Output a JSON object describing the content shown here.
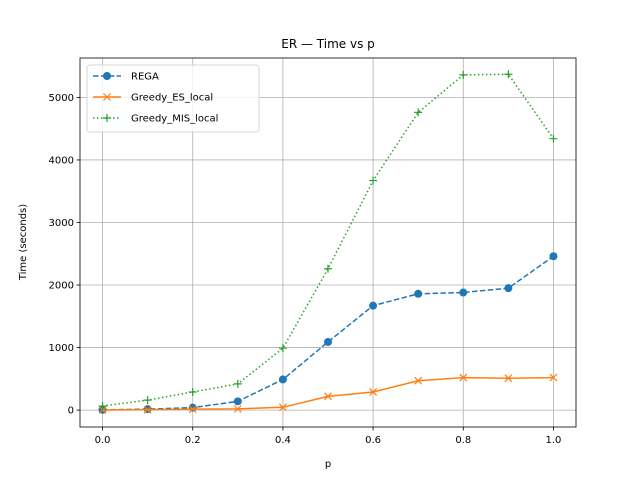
{
  "chart_data": {
    "type": "line",
    "title": "ER — Time vs p",
    "xlabel": "p",
    "ylabel": "Time (seconds)",
    "xlim": [
      -0.05,
      1.05
    ],
    "ylim": [
      -270,
      5630
    ],
    "xticks": [
      0.0,
      0.2,
      0.4,
      0.6,
      0.8,
      1.0
    ],
    "xtick_labels": [
      "0.0",
      "0.2",
      "0.4",
      "0.6",
      "0.8",
      "1.0"
    ],
    "yticks": [
      0,
      1000,
      2000,
      3000,
      4000,
      5000
    ],
    "ytick_labels": [
      "0",
      "1000",
      "2000",
      "3000",
      "4000",
      "5000"
    ],
    "grid": true,
    "legend_position": "top-left",
    "x": [
      0.0,
      0.1,
      0.2,
      0.3,
      0.4,
      0.5,
      0.6,
      0.7,
      0.8,
      0.9,
      1.0
    ],
    "series": [
      {
        "name": "REGA",
        "color": "#1f77b4",
        "linestyle": "dashed",
        "marker": "circle",
        "values": [
          5,
          15,
          40,
          140,
          490,
          1090,
          1670,
          1860,
          1880,
          1950,
          2460
        ]
      },
      {
        "name": "Greedy_ES_local",
        "color": "#ff7f0e",
        "linestyle": "solid",
        "marker": "x",
        "values": [
          2,
          5,
          15,
          20,
          45,
          220,
          290,
          470,
          520,
          510,
          520
        ]
      },
      {
        "name": "Greedy_MIS_local",
        "color": "#2ca02c",
        "linestyle": "dotted",
        "marker": "plus",
        "values": [
          65,
          160,
          290,
          420,
          990,
          2260,
          3670,
          4760,
          5360,
          5370,
          4340
        ]
      }
    ]
  }
}
